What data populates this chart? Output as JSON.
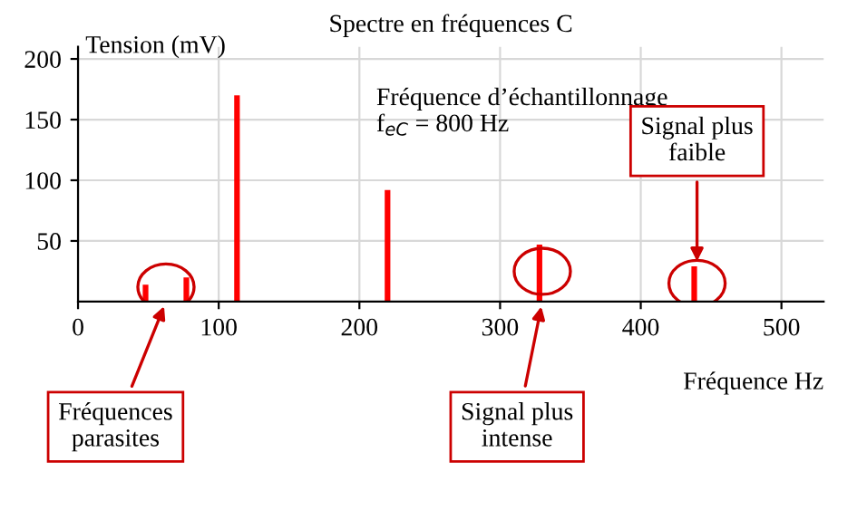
{
  "chart_data": {
    "type": "bar",
    "title": "Spectre en fréquences C",
    "xlabel": "Fréquence Hz",
    "ylabel": "Tension (mV)",
    "x": [
      48,
      77,
      113,
      220,
      328,
      438
    ],
    "values": [
      14,
      20,
      170,
      92,
      47,
      29
    ],
    "color": "#ff0000",
    "xlim": [
      0,
      530
    ],
    "ylim": [
      0,
      210
    ],
    "xticks": [
      0,
      100,
      200,
      300,
      400,
      500
    ],
    "yticks": [
      50,
      100,
      150,
      200
    ],
    "grid": true,
    "annotations": [
      "Fréquence d’échantillonnage\nf$_{eC}$ = 800 Hz",
      "Fréquences\nparasites",
      {
        "text": "Signal plus\nintense",
        "x": 330,
        "y": 0
      },
      {
        "text": "Signal plus\nfaible",
        "x": 440,
        "y": 29
      }
    ]
  }
}
